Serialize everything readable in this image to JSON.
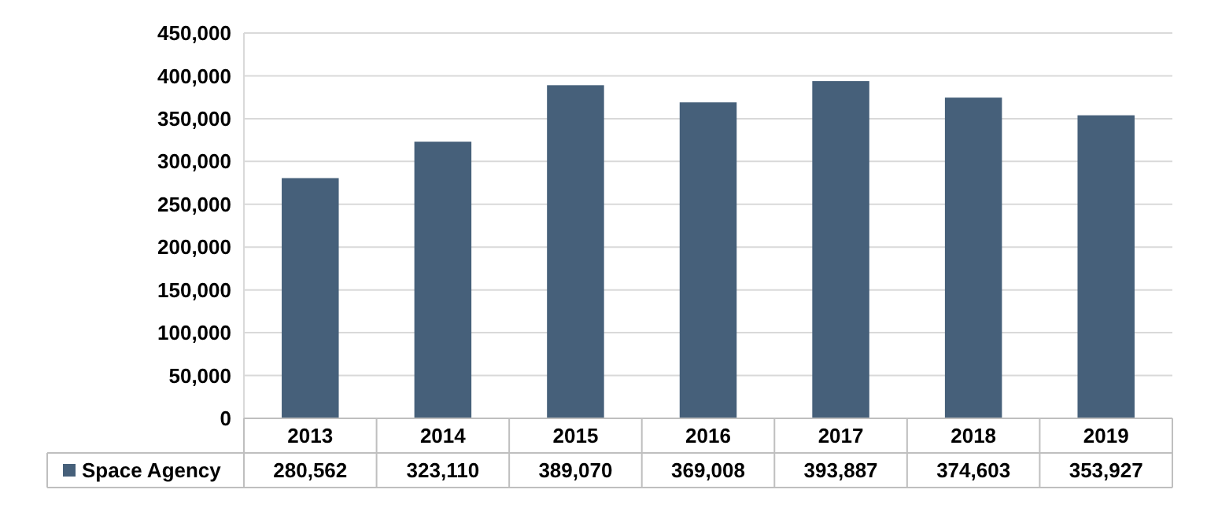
{
  "chart_data": {
    "type": "bar",
    "categories": [
      "2013",
      "2014",
      "2015",
      "2016",
      "2017",
      "2018",
      "2019"
    ],
    "series": [
      {
        "name": "Space Agency",
        "color": "#46607a",
        "values": [
          280562,
          323110,
          389070,
          369008,
          393887,
          374603,
          353927
        ],
        "value_labels": [
          "280,562",
          "323,110",
          "389,070",
          "369,008",
          "393,887",
          "374,603",
          "353,927"
        ]
      }
    ],
    "ylim": [
      0,
      450000
    ],
    "yticks": [
      {
        "value": 0,
        "label": "0"
      },
      {
        "value": 50000,
        "label": "50,000"
      },
      {
        "value": 100000,
        "label": "100,000"
      },
      {
        "value": 150000,
        "label": "150,000"
      },
      {
        "value": 200000,
        "label": "200,000"
      },
      {
        "value": 250000,
        "label": "250,000"
      },
      {
        "value": 300000,
        "label": "300,000"
      },
      {
        "value": 350000,
        "label": "350,000"
      },
      {
        "value": 400000,
        "label": "400,000"
      },
      {
        "value": 450000,
        "label": "450,000"
      }
    ],
    "grid": "y",
    "legend": "bottom"
  }
}
